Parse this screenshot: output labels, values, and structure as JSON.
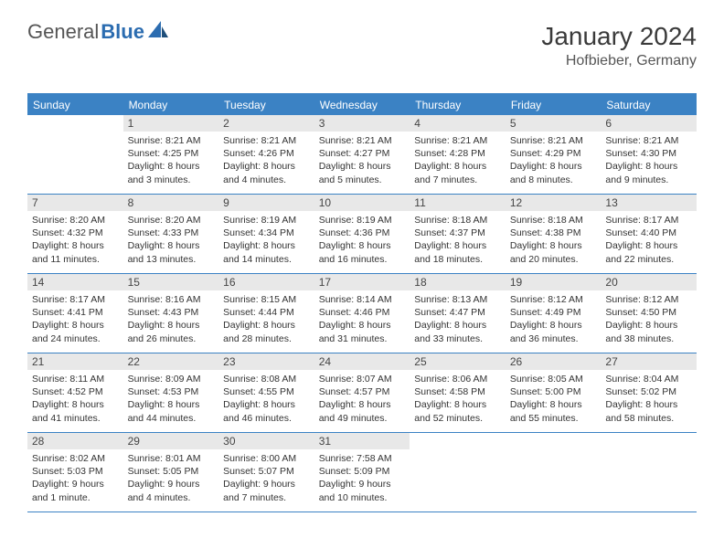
{
  "logo": {
    "part1": "General",
    "part2": "Blue"
  },
  "header": {
    "title": "January 2024",
    "location": "Hofbieber, Germany"
  },
  "colors": {
    "accent": "#3b82c4",
    "header_bg": "#3b82c4",
    "daynum_bg": "#e8e8e8",
    "rule": "#3b82c4",
    "text": "#333333",
    "title": "#3a3a3a"
  },
  "weekdays": [
    "Sunday",
    "Monday",
    "Tuesday",
    "Wednesday",
    "Thursday",
    "Friday",
    "Saturday"
  ],
  "weeks": [
    [
      {
        "n": "",
        "sr": "",
        "ss": "",
        "dl": "",
        "empty": true
      },
      {
        "n": "1",
        "sr": "Sunrise: 8:21 AM",
        "ss": "Sunset: 4:25 PM",
        "dl": "Daylight: 8 hours and 3 minutes."
      },
      {
        "n": "2",
        "sr": "Sunrise: 8:21 AM",
        "ss": "Sunset: 4:26 PM",
        "dl": "Daylight: 8 hours and 4 minutes."
      },
      {
        "n": "3",
        "sr": "Sunrise: 8:21 AM",
        "ss": "Sunset: 4:27 PM",
        "dl": "Daylight: 8 hours and 5 minutes."
      },
      {
        "n": "4",
        "sr": "Sunrise: 8:21 AM",
        "ss": "Sunset: 4:28 PM",
        "dl": "Daylight: 8 hours and 7 minutes."
      },
      {
        "n": "5",
        "sr": "Sunrise: 8:21 AM",
        "ss": "Sunset: 4:29 PM",
        "dl": "Daylight: 8 hours and 8 minutes."
      },
      {
        "n": "6",
        "sr": "Sunrise: 8:21 AM",
        "ss": "Sunset: 4:30 PM",
        "dl": "Daylight: 8 hours and 9 minutes."
      }
    ],
    [
      {
        "n": "7",
        "sr": "Sunrise: 8:20 AM",
        "ss": "Sunset: 4:32 PM",
        "dl": "Daylight: 8 hours and 11 minutes."
      },
      {
        "n": "8",
        "sr": "Sunrise: 8:20 AM",
        "ss": "Sunset: 4:33 PM",
        "dl": "Daylight: 8 hours and 13 minutes."
      },
      {
        "n": "9",
        "sr": "Sunrise: 8:19 AM",
        "ss": "Sunset: 4:34 PM",
        "dl": "Daylight: 8 hours and 14 minutes."
      },
      {
        "n": "10",
        "sr": "Sunrise: 8:19 AM",
        "ss": "Sunset: 4:36 PM",
        "dl": "Daylight: 8 hours and 16 minutes."
      },
      {
        "n": "11",
        "sr": "Sunrise: 8:18 AM",
        "ss": "Sunset: 4:37 PM",
        "dl": "Daylight: 8 hours and 18 minutes."
      },
      {
        "n": "12",
        "sr": "Sunrise: 8:18 AM",
        "ss": "Sunset: 4:38 PM",
        "dl": "Daylight: 8 hours and 20 minutes."
      },
      {
        "n": "13",
        "sr": "Sunrise: 8:17 AM",
        "ss": "Sunset: 4:40 PM",
        "dl": "Daylight: 8 hours and 22 minutes."
      }
    ],
    [
      {
        "n": "14",
        "sr": "Sunrise: 8:17 AM",
        "ss": "Sunset: 4:41 PM",
        "dl": "Daylight: 8 hours and 24 minutes."
      },
      {
        "n": "15",
        "sr": "Sunrise: 8:16 AM",
        "ss": "Sunset: 4:43 PM",
        "dl": "Daylight: 8 hours and 26 minutes."
      },
      {
        "n": "16",
        "sr": "Sunrise: 8:15 AM",
        "ss": "Sunset: 4:44 PM",
        "dl": "Daylight: 8 hours and 28 minutes."
      },
      {
        "n": "17",
        "sr": "Sunrise: 8:14 AM",
        "ss": "Sunset: 4:46 PM",
        "dl": "Daylight: 8 hours and 31 minutes."
      },
      {
        "n": "18",
        "sr": "Sunrise: 8:13 AM",
        "ss": "Sunset: 4:47 PM",
        "dl": "Daylight: 8 hours and 33 minutes."
      },
      {
        "n": "19",
        "sr": "Sunrise: 8:12 AM",
        "ss": "Sunset: 4:49 PM",
        "dl": "Daylight: 8 hours and 36 minutes."
      },
      {
        "n": "20",
        "sr": "Sunrise: 8:12 AM",
        "ss": "Sunset: 4:50 PM",
        "dl": "Daylight: 8 hours and 38 minutes."
      }
    ],
    [
      {
        "n": "21",
        "sr": "Sunrise: 8:11 AM",
        "ss": "Sunset: 4:52 PM",
        "dl": "Daylight: 8 hours and 41 minutes."
      },
      {
        "n": "22",
        "sr": "Sunrise: 8:09 AM",
        "ss": "Sunset: 4:53 PM",
        "dl": "Daylight: 8 hours and 44 minutes."
      },
      {
        "n": "23",
        "sr": "Sunrise: 8:08 AM",
        "ss": "Sunset: 4:55 PM",
        "dl": "Daylight: 8 hours and 46 minutes."
      },
      {
        "n": "24",
        "sr": "Sunrise: 8:07 AM",
        "ss": "Sunset: 4:57 PM",
        "dl": "Daylight: 8 hours and 49 minutes."
      },
      {
        "n": "25",
        "sr": "Sunrise: 8:06 AM",
        "ss": "Sunset: 4:58 PM",
        "dl": "Daylight: 8 hours and 52 minutes."
      },
      {
        "n": "26",
        "sr": "Sunrise: 8:05 AM",
        "ss": "Sunset: 5:00 PM",
        "dl": "Daylight: 8 hours and 55 minutes."
      },
      {
        "n": "27",
        "sr": "Sunrise: 8:04 AM",
        "ss": "Sunset: 5:02 PM",
        "dl": "Daylight: 8 hours and 58 minutes."
      }
    ],
    [
      {
        "n": "28",
        "sr": "Sunrise: 8:02 AM",
        "ss": "Sunset: 5:03 PM",
        "dl": "Daylight: 9 hours and 1 minute."
      },
      {
        "n": "29",
        "sr": "Sunrise: 8:01 AM",
        "ss": "Sunset: 5:05 PM",
        "dl": "Daylight: 9 hours and 4 minutes."
      },
      {
        "n": "30",
        "sr": "Sunrise: 8:00 AM",
        "ss": "Sunset: 5:07 PM",
        "dl": "Daylight: 9 hours and 7 minutes."
      },
      {
        "n": "31",
        "sr": "Sunrise: 7:58 AM",
        "ss": "Sunset: 5:09 PM",
        "dl": "Daylight: 9 hours and 10 minutes."
      },
      {
        "n": "",
        "sr": "",
        "ss": "",
        "dl": "",
        "empty": true
      },
      {
        "n": "",
        "sr": "",
        "ss": "",
        "dl": "",
        "empty": true
      },
      {
        "n": "",
        "sr": "",
        "ss": "",
        "dl": "",
        "empty": true
      }
    ]
  ]
}
